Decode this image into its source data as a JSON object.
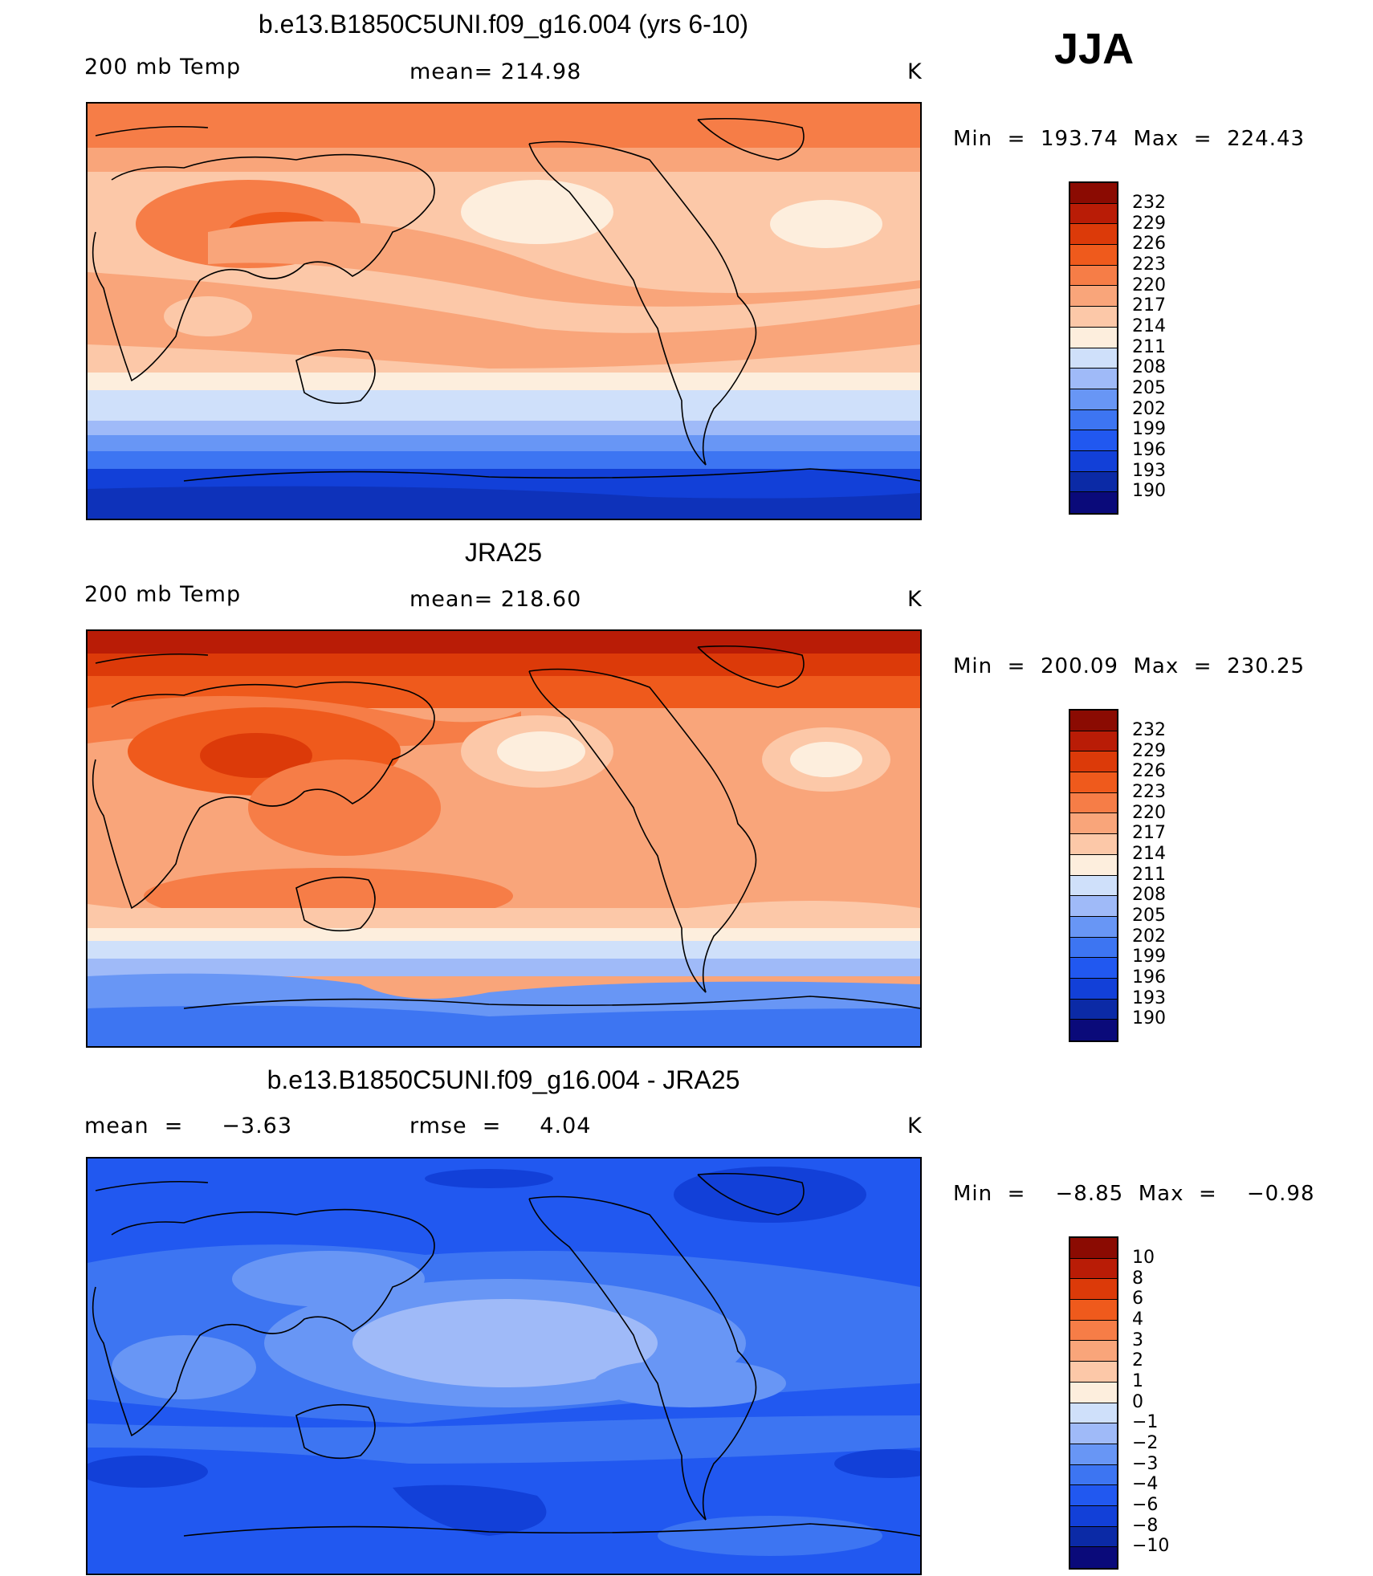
{
  "season": "JJA",
  "colors": {
    "warm_scale": [
      "#0a0a7a",
      "#0b2aa6",
      "#1240d8",
      "#2158f0",
      "#3d75f2",
      "#6896f5",
      "#9fbaf8",
      "#cfe0fa",
      "#fdeedd",
      "#fcc8a8",
      "#f9a57a",
      "#f67d47",
      "#ef5a1c",
      "#dc3a09",
      "#b91c06",
      "#8b0b02"
    ],
    "diff_scale": [
      "#0a0a7a",
      "#0b2aa6",
      "#1240d8",
      "#2158f0",
      "#3d75f2",
      "#6896f5",
      "#9fbaf8",
      "#cfe0fa",
      "#fdeedd",
      "#fcc8a8",
      "#f9a57a",
      "#f67d47",
      "#ef5a1c",
      "#dc3a09",
      "#b91c06",
      "#8b0b02"
    ]
  },
  "panels": [
    {
      "title": "b.e13.B1850C5UNI.f09_g16.004 (yrs 6-10)",
      "left_text": "200 mb Temp",
      "center_text": "mean= 214.98",
      "units": "K",
      "minmax": "Min  =  193.74  Max  =  224.43",
      "colorbar_labels": [
        "232",
        "229",
        "226",
        "223",
        "220",
        "217",
        "214",
        "211",
        "208",
        "205",
        "202",
        "199",
        "196",
        "193",
        "190"
      ]
    },
    {
      "title": "JRA25",
      "left_text": "200 mb Temp",
      "center_text": "mean= 218.60",
      "units": "K",
      "minmax": "Min  =  200.09  Max  =  230.25",
      "colorbar_labels": [
        "232",
        "229",
        "226",
        "223",
        "220",
        "217",
        "214",
        "211",
        "208",
        "205",
        "202",
        "199",
        "196",
        "193",
        "190"
      ]
    },
    {
      "title": "b.e13.B1850C5UNI.f09_g16.004 - JRA25",
      "left_text": "mean  =     −3.63",
      "center_text": "rmse  =     4.04",
      "units": "K",
      "minmax": "Min  =    −8.85  Max  =    −0.98",
      "colorbar_labels": [
        "10",
        "8",
        "6",
        "4",
        "3",
        "2",
        "1",
        "0",
        "−1",
        "−2",
        "−3",
        "−4",
        "−6",
        "−8",
        "−10"
      ]
    }
  ]
}
